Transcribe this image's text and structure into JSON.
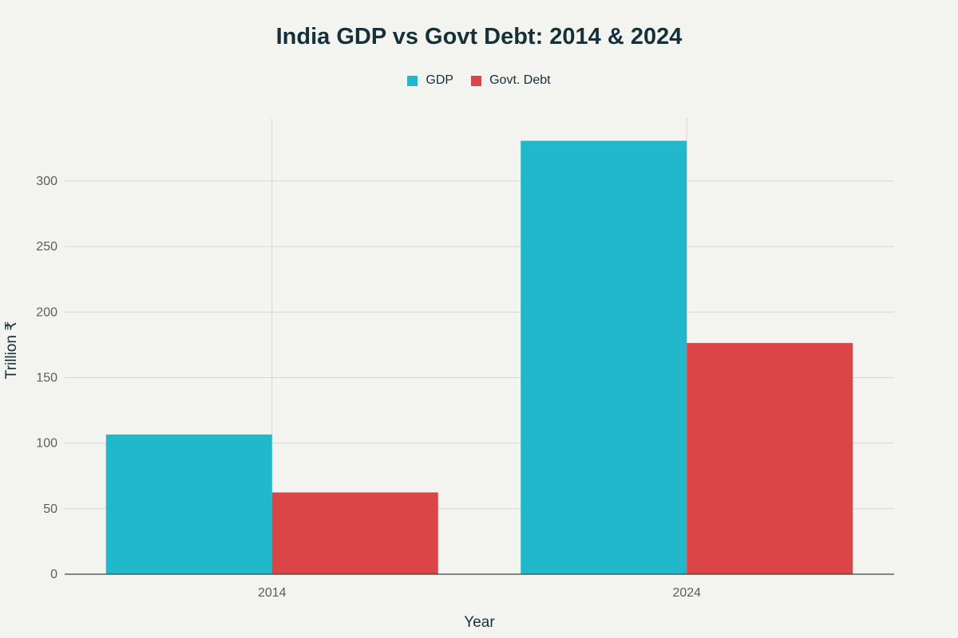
{
  "chart_data": {
    "type": "bar",
    "title": "India GDP vs Govt Debt: 2014 & 2024",
    "xlabel": "Year",
    "ylabel": "Trillion ₹",
    "categories": [
      "2014",
      "2024"
    ],
    "series": [
      {
        "name": "GDP",
        "values": [
          106.6,
          330.7
        ],
        "color": "#21b8cc"
      },
      {
        "name": "Govt. Debt",
        "values": [
          62.4,
          176.4
        ],
        "color": "#dc4547"
      }
    ],
    "ylim": [
      0,
      348
    ],
    "yticks": [
      0,
      50,
      100,
      150,
      200,
      250,
      300
    ],
    "grid": true,
    "legend_position": "top-center"
  }
}
